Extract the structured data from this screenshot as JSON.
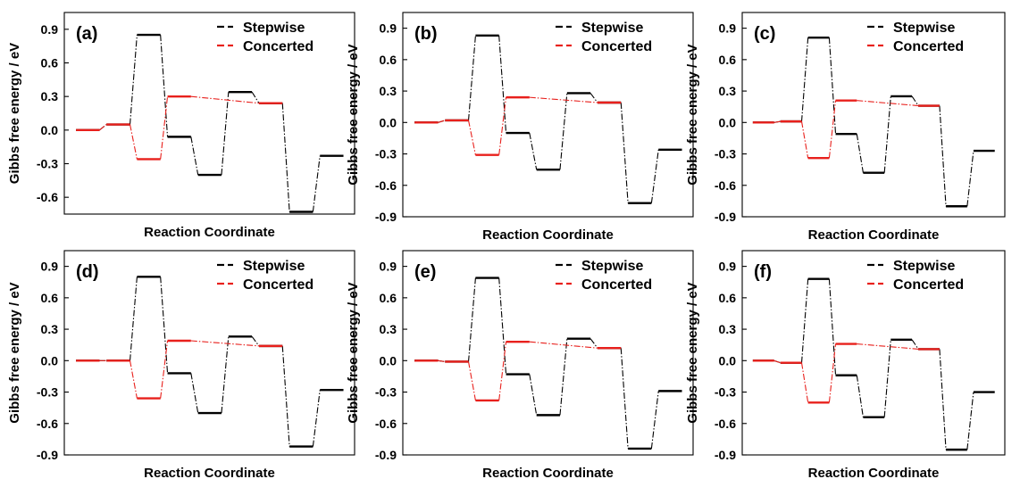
{
  "colors": {
    "stepwise": "#000000",
    "concerted": "#e8201c"
  },
  "chart_data": [
    {
      "type": "line",
      "panel_label": "(a)",
      "xlabel": "Reaction Coordinate",
      "ylabel": "Gibbs free energy / eV",
      "ylim": [
        -0.75,
        1.05
      ],
      "yticks": [
        "-0.6",
        "-0.3",
        "0.0",
        "0.3",
        "0.6",
        "0.9"
      ],
      "ytick_values": [
        -0.6,
        -0.3,
        0.0,
        0.3,
        0.6,
        0.9
      ],
      "legend_position": "top-right",
      "series": [
        {
          "name": "Stepwise",
          "values": [
            0.0,
            0.05,
            0.85,
            -0.06,
            -0.4,
            0.34,
            0.24,
            -0.73,
            -0.23
          ]
        },
        {
          "name": "Concerted",
          "values": [
            0.0,
            0.05,
            -0.26,
            0.3,
            null,
            null,
            0.24,
            null,
            null
          ]
        }
      ]
    },
    {
      "type": "line",
      "panel_label": "(b)",
      "xlabel": "Reaction Coordinate",
      "ylabel": "Gibbs free energy / eV",
      "ylim": [
        -0.9,
        1.05
      ],
      "yticks": [
        "-0.9",
        "-0.6",
        "-0.3",
        "0.0",
        "0.3",
        "0.6",
        "0.9"
      ],
      "ytick_values": [
        -0.9,
        -0.6,
        -0.3,
        0.0,
        0.3,
        0.6,
        0.9
      ],
      "legend_position": "top-right",
      "series": [
        {
          "name": "Stepwise",
          "values": [
            0.0,
            0.02,
            0.83,
            -0.1,
            -0.45,
            0.28,
            0.19,
            -0.77,
            -0.26
          ]
        },
        {
          "name": "Concerted",
          "values": [
            0.0,
            0.02,
            -0.31,
            0.24,
            null,
            null,
            0.19,
            null,
            null
          ]
        }
      ]
    },
    {
      "type": "line",
      "panel_label": "(c)",
      "xlabel": "Reaction Coordinate",
      "ylabel": "Gibbs free energy / eV",
      "ylim": [
        -0.9,
        1.05
      ],
      "yticks": [
        "-0.9",
        "-0.6",
        "-0.3",
        "0.0",
        "0.3",
        "0.6",
        "0.9"
      ],
      "ytick_values": [
        -0.9,
        -0.6,
        -0.3,
        0.0,
        0.3,
        0.6,
        0.9
      ],
      "legend_position": "top-right",
      "series": [
        {
          "name": "Stepwise",
          "values": [
            0.0,
            0.01,
            0.81,
            -0.11,
            -0.48,
            0.25,
            0.16,
            -0.8,
            -0.27
          ]
        },
        {
          "name": "Concerted",
          "values": [
            0.0,
            0.01,
            -0.34,
            0.21,
            null,
            null,
            0.16,
            null,
            null
          ]
        }
      ]
    },
    {
      "type": "line",
      "panel_label": "(d)",
      "xlabel": "Reaction Coordinate",
      "ylabel": "Gibbs free energy / eV",
      "ylim": [
        -0.9,
        1.05
      ],
      "yticks": [
        "-0.9",
        "-0.6",
        "-0.3",
        "0.0",
        "0.3",
        "0.6",
        "0.9"
      ],
      "ytick_values": [
        -0.9,
        -0.6,
        -0.3,
        0.0,
        0.3,
        0.6,
        0.9
      ],
      "legend_position": "top-right",
      "series": [
        {
          "name": "Stepwise",
          "values": [
            0.0,
            0.0,
            0.8,
            -0.12,
            -0.5,
            0.23,
            0.14,
            -0.82,
            -0.28
          ]
        },
        {
          "name": "Concerted",
          "values": [
            0.0,
            0.0,
            -0.36,
            0.19,
            null,
            null,
            0.14,
            null,
            null
          ]
        }
      ]
    },
    {
      "type": "line",
      "panel_label": "(e)",
      "xlabel": "Reaction Coordinate",
      "ylabel": "Gibbs free energy / eV",
      "ylim": [
        -0.9,
        1.05
      ],
      "yticks": [
        "-0.9",
        "-0.6",
        "-0.3",
        "0.0",
        "0.3",
        "0.6",
        "0.9"
      ],
      "ytick_values": [
        -0.9,
        -0.6,
        -0.3,
        0.0,
        0.3,
        0.6,
        0.9
      ],
      "legend_position": "top-right",
      "series": [
        {
          "name": "Stepwise",
          "values": [
            0.0,
            -0.01,
            0.79,
            -0.13,
            -0.52,
            0.21,
            0.12,
            -0.84,
            -0.29
          ]
        },
        {
          "name": "Concerted",
          "values": [
            0.0,
            -0.01,
            -0.38,
            0.18,
            null,
            null,
            0.12,
            null,
            null
          ]
        }
      ]
    },
    {
      "type": "line",
      "panel_label": "(f)",
      "xlabel": "Reaction Coordinate",
      "ylabel": "Gibbs free energy / eV",
      "ylim": [
        -0.9,
        1.05
      ],
      "yticks": [
        "-0.9",
        "-0.6",
        "-0.3",
        "0.0",
        "0.3",
        "0.6",
        "0.9"
      ],
      "ytick_values": [
        -0.9,
        -0.6,
        -0.3,
        0.0,
        0.3,
        0.6,
        0.9
      ],
      "legend_position": "top-right",
      "series": [
        {
          "name": "Stepwise",
          "values": [
            0.0,
            -0.02,
            0.78,
            -0.14,
            -0.54,
            0.2,
            0.11,
            -0.85,
            -0.3
          ]
        },
        {
          "name": "Concerted",
          "values": [
            0.0,
            -0.02,
            -0.4,
            0.16,
            null,
            null,
            0.11,
            null,
            null
          ]
        }
      ]
    }
  ]
}
